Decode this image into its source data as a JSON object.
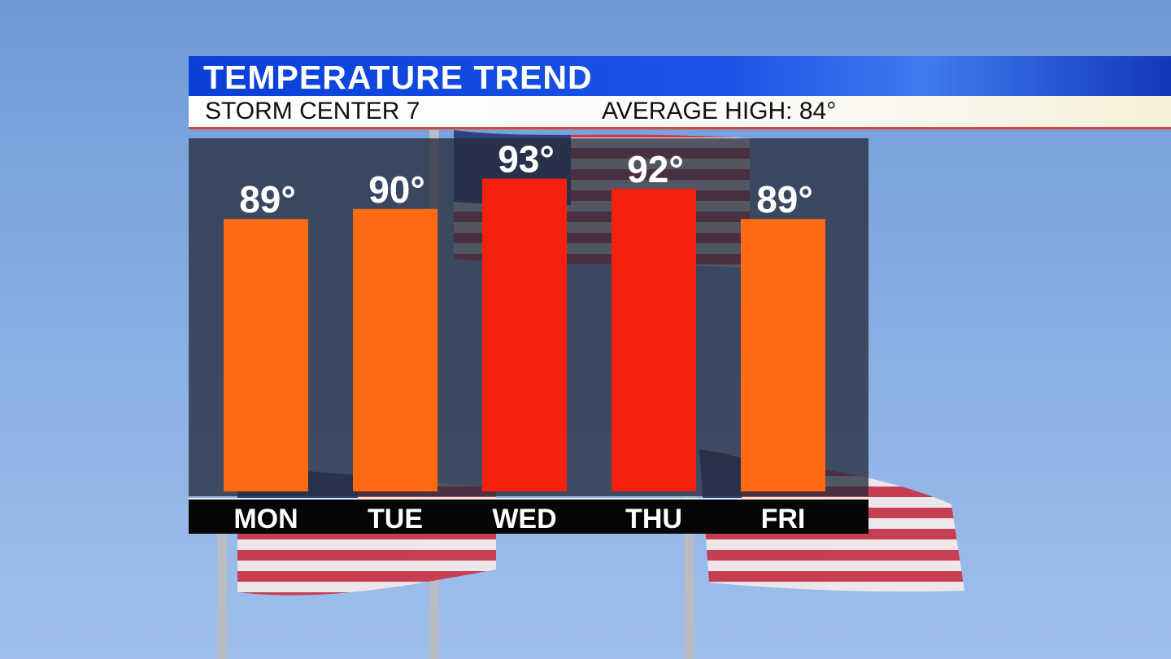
{
  "header": {
    "title": "TEMPERATURE TREND",
    "station": "STORM CENTER 7",
    "average_high": "AVERAGE HIGH: 84°"
  },
  "colors": {
    "title_bar": "#1a55e6",
    "bar_warm": "#ff6a12",
    "bar_hot": "#f5200e",
    "panel": "#262d3c"
  },
  "chart_data": {
    "type": "bar",
    "categories": [
      "MON",
      "TUE",
      "WED",
      "THU",
      "FRI"
    ],
    "values": [
      89,
      90,
      93,
      92,
      89
    ],
    "value_labels": [
      "89°",
      "90°",
      "93°",
      "92°",
      "89°"
    ],
    "bar_colors": [
      "#ff6a12",
      "#ff6a12",
      "#f5200e",
      "#f5200e",
      "#ff6a12"
    ],
    "ylim": [
      62,
      97
    ],
    "grid": false,
    "legend": "none"
  }
}
